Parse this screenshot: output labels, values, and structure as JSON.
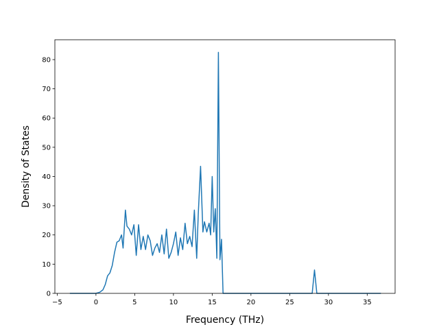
{
  "chart_data": {
    "type": "line",
    "xlabel": "Frequency (THz)",
    "ylabel": "Density of States",
    "xlim": [
      -5.3,
      38.6
    ],
    "ylim": [
      0,
      86.8
    ],
    "xticks": [
      -5,
      0,
      5,
      10,
      15,
      20,
      25,
      30,
      35
    ],
    "yticks": [
      0,
      10,
      20,
      30,
      40,
      50,
      60,
      70,
      80
    ],
    "grid": false,
    "colors": {
      "line": "#1f77b4",
      "axes": "#000000",
      "background": "#ffffff"
    },
    "series": [
      {
        "name": "",
        "x": [
          -3.3,
          -2.0,
          -1.0,
          0.0,
          0.5,
          0.9,
          1.2,
          1.5,
          1.8,
          2.1,
          2.4,
          2.7,
          3.0,
          3.3,
          3.5,
          3.8,
          4.0,
          4.3,
          4.6,
          4.9,
          5.2,
          5.5,
          5.8,
          6.1,
          6.4,
          6.7,
          7.0,
          7.3,
          7.6,
          7.9,
          8.2,
          8.5,
          8.8,
          9.1,
          9.4,
          9.7,
          10.0,
          10.3,
          10.6,
          10.9,
          11.2,
          11.5,
          11.8,
          12.1,
          12.4,
          12.7,
          13.0,
          13.2,
          13.5,
          13.8,
          14.0,
          14.3,
          14.6,
          14.8,
          15.0,
          15.2,
          15.4,
          15.6,
          15.8,
          16.0,
          16.2,
          16.4,
          16.6,
          16.9,
          17.5,
          20,
          25,
          27.9,
          28.2,
          28.5,
          29.0,
          35,
          36.7
        ],
        "values": [
          0,
          0,
          0,
          0,
          0.4,
          1.2,
          3.0,
          6.0,
          7.0,
          9.5,
          14.0,
          17.5,
          18.0,
          20.0,
          15.5,
          28.5,
          23.0,
          22.0,
          20.0,
          23.5,
          13.0,
          23.5,
          15.0,
          19.5,
          15.0,
          20.0,
          18.0,
          13.0,
          15.5,
          17.0,
          14.0,
          20.0,
          13.5,
          22.0,
          12.0,
          14.0,
          17.0,
          21.0,
          13.0,
          19.0,
          15.0,
          24.0,
          17.0,
          19.5,
          16.0,
          28.5,
          12.0,
          27.0,
          43.5,
          21.0,
          24.5,
          21.0,
          24.0,
          20.0,
          40.0,
          21.0,
          29.0,
          12.0,
          82.5,
          11.5,
          18.5,
          0.0,
          0,
          0,
          0,
          0,
          0,
          0,
          8.0,
          0,
          0,
          0,
          0
        ]
      }
    ]
  }
}
